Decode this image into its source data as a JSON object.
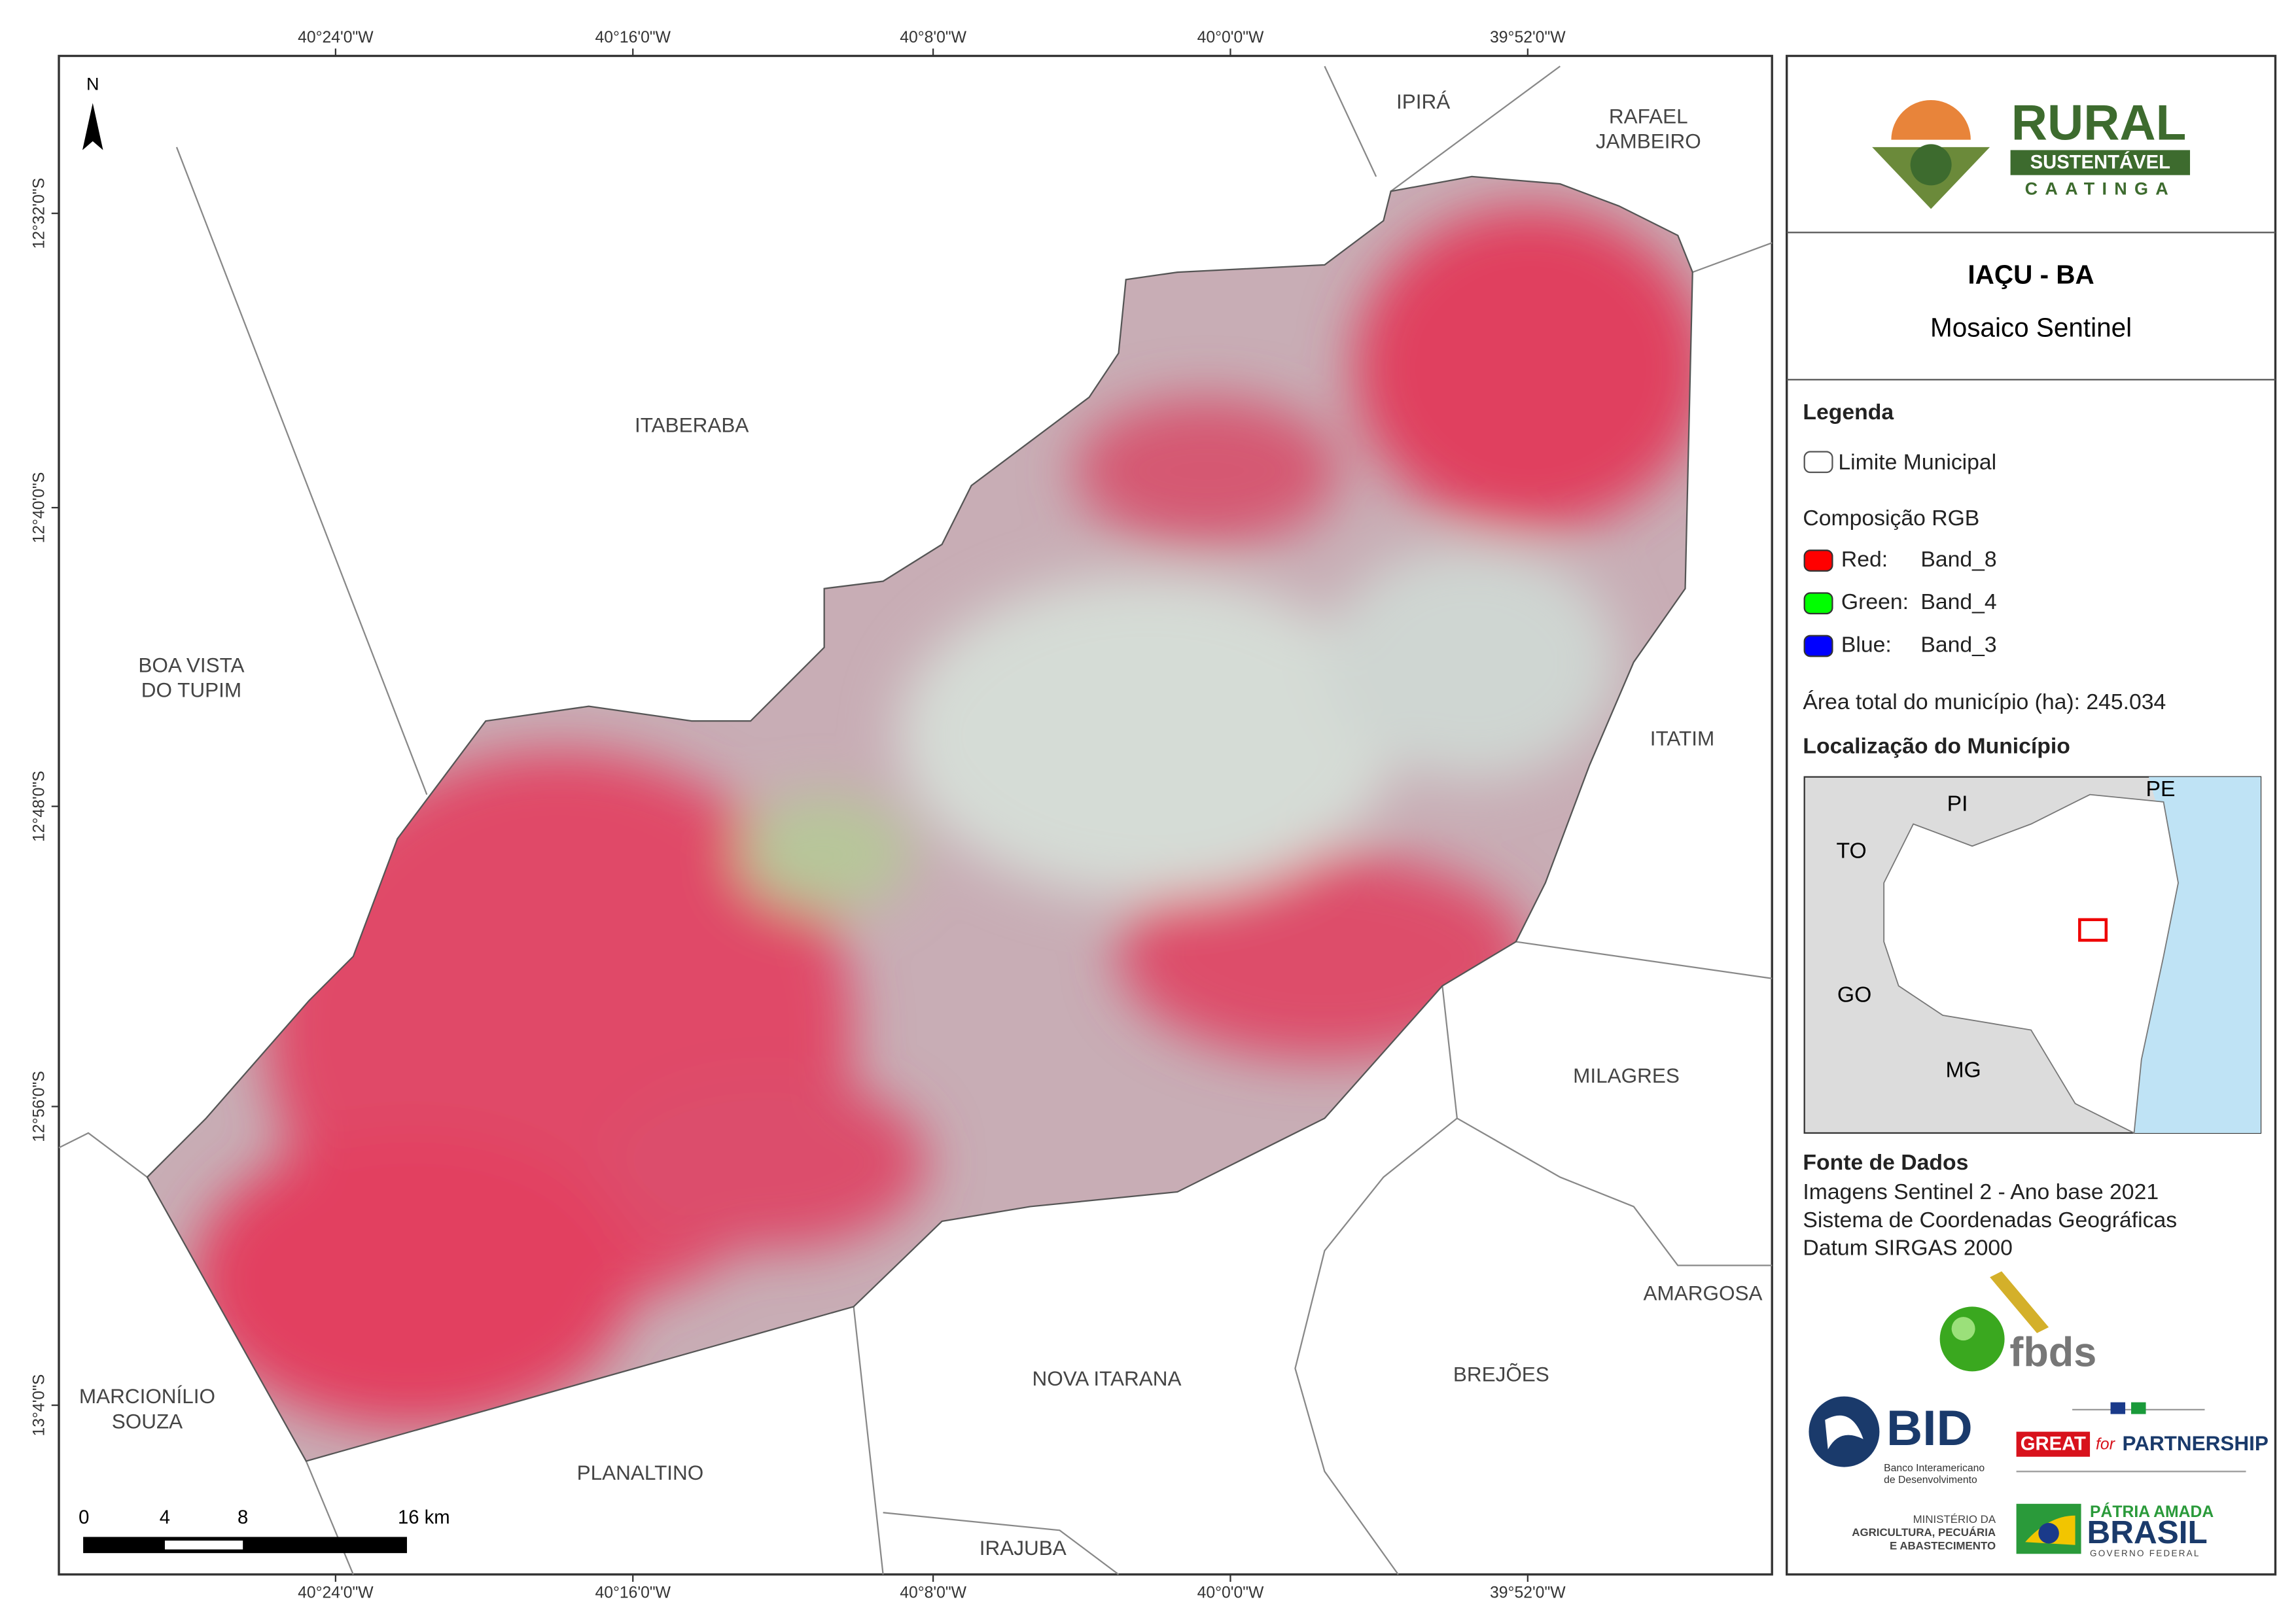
{
  "map": {
    "lon_labels": [
      "40°24'0\"W",
      "40°16'0\"W",
      "40°8'0\"W",
      "40°0'0\"W",
      "39°52'0\"W"
    ],
    "lat_labels": [
      "12°32'0\"S",
      "12°40'0\"S",
      "12°48'0\"S",
      "12°56'0\"S",
      "13°4'0\"S"
    ],
    "north": "N",
    "neighbors": [
      [
        "IPIRÁ"
      ],
      [
        "RAFAEL",
        "JAMBEIRO"
      ],
      [
        "ITABERABA"
      ],
      [
        "BOA VISTA",
        "DO TUPIM"
      ],
      [
        "ITATIM"
      ],
      [
        "MILAGRES"
      ],
      [
        "AMARGOSA"
      ],
      [
        "BREJÕES"
      ],
      [
        "NOVA ITARANA"
      ],
      [
        "PLANALTINO"
      ],
      [
        "IRAJUBA"
      ],
      [
        "MARCIONÍLIO",
        "SOUZA"
      ]
    ],
    "scale_labels": [
      "0",
      "4",
      "8",
      "16 km"
    ]
  },
  "panel": {
    "logo": {
      "rural": "RURAL",
      "sustentavel": "SUSTENTÁVEL",
      "caatinga": "CAATINGA"
    },
    "title": "IAÇU - BA",
    "subtitle": "Mosaico Sentinel",
    "legend": {
      "title": "Legenda",
      "limit": "Limite Municipal",
      "composition": "Composição RGB",
      "bands": [
        [
          "Red:",
          "Band_8"
        ],
        [
          "Green:",
          "Band_4"
        ],
        [
          "Blue:",
          "Band_3"
        ]
      ],
      "area": "Área total do município (ha): 245.034"
    },
    "location": {
      "title": "Localização do Município",
      "states": [
        "PI",
        "PE",
        "TO",
        "GO",
        "MG"
      ]
    },
    "source": {
      "title": "Fonte de Dados",
      "lines": [
        "Imagens Sentinel 2 - Ano base 2021",
        "Sistema de Coordenadas Geográficas",
        "Datum SIRGAS 2000"
      ]
    },
    "logos": {
      "fbds": "fbds",
      "bid": "BID",
      "bid_name": [
        "Banco Interamericano",
        "de Desenvolvimento"
      ],
      "great": "GREAT",
      "for": "for",
      "partnership": "PARTNERSHIP",
      "ministry": [
        "MINISTÉRIO DA",
        "AGRICULTURA, PECUÁRIA",
        "E ABASTECIMENTO"
      ],
      "patria": "PÁTRIA AMADA",
      "brasil": "BRASIL",
      "governo": "GOVERNO FEDERAL"
    }
  }
}
